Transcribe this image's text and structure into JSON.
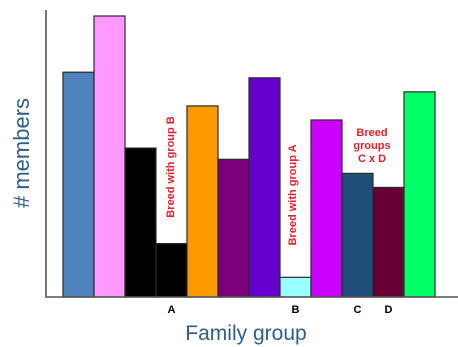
{
  "chart_data": {
    "type": "bar",
    "title": "",
    "xlabel": "Family group",
    "ylabel": "# members",
    "ylim": [
      0,
      100
    ],
    "grid": false,
    "bars": [
      {
        "value": 80,
        "color": "#4f81bd",
        "label": ""
      },
      {
        "value": 100,
        "color": "#ff99ff",
        "label": ""
      },
      {
        "value": 53,
        "color": "#000000",
        "label": ""
      },
      {
        "value": 19,
        "color": "#000000",
        "label": "A"
      },
      {
        "value": 68,
        "color": "#ff9900",
        "label": ""
      },
      {
        "value": 49,
        "color": "#7b007b",
        "label": ""
      },
      {
        "value": 78,
        "color": "#6600cc",
        "label": ""
      },
      {
        "value": 7,
        "color": "#99ffff",
        "label": "B"
      },
      {
        "value": 63,
        "color": "#cc00ff",
        "label": ""
      },
      {
        "value": 44,
        "color": "#1f4e79",
        "label": "C"
      },
      {
        "value": 39,
        "color": "#660033",
        "label": "D"
      },
      {
        "value": 73,
        "color": "#00ff66",
        "label": ""
      }
    ],
    "annotations": [
      {
        "text": "Breed  with group B",
        "orientation": "vertical"
      },
      {
        "text": "Breed  with group A",
        "orientation": "vertical"
      },
      {
        "lines": [
          "Breed",
          "groups",
          "C x D"
        ],
        "orientation": "horizontal"
      }
    ]
  }
}
